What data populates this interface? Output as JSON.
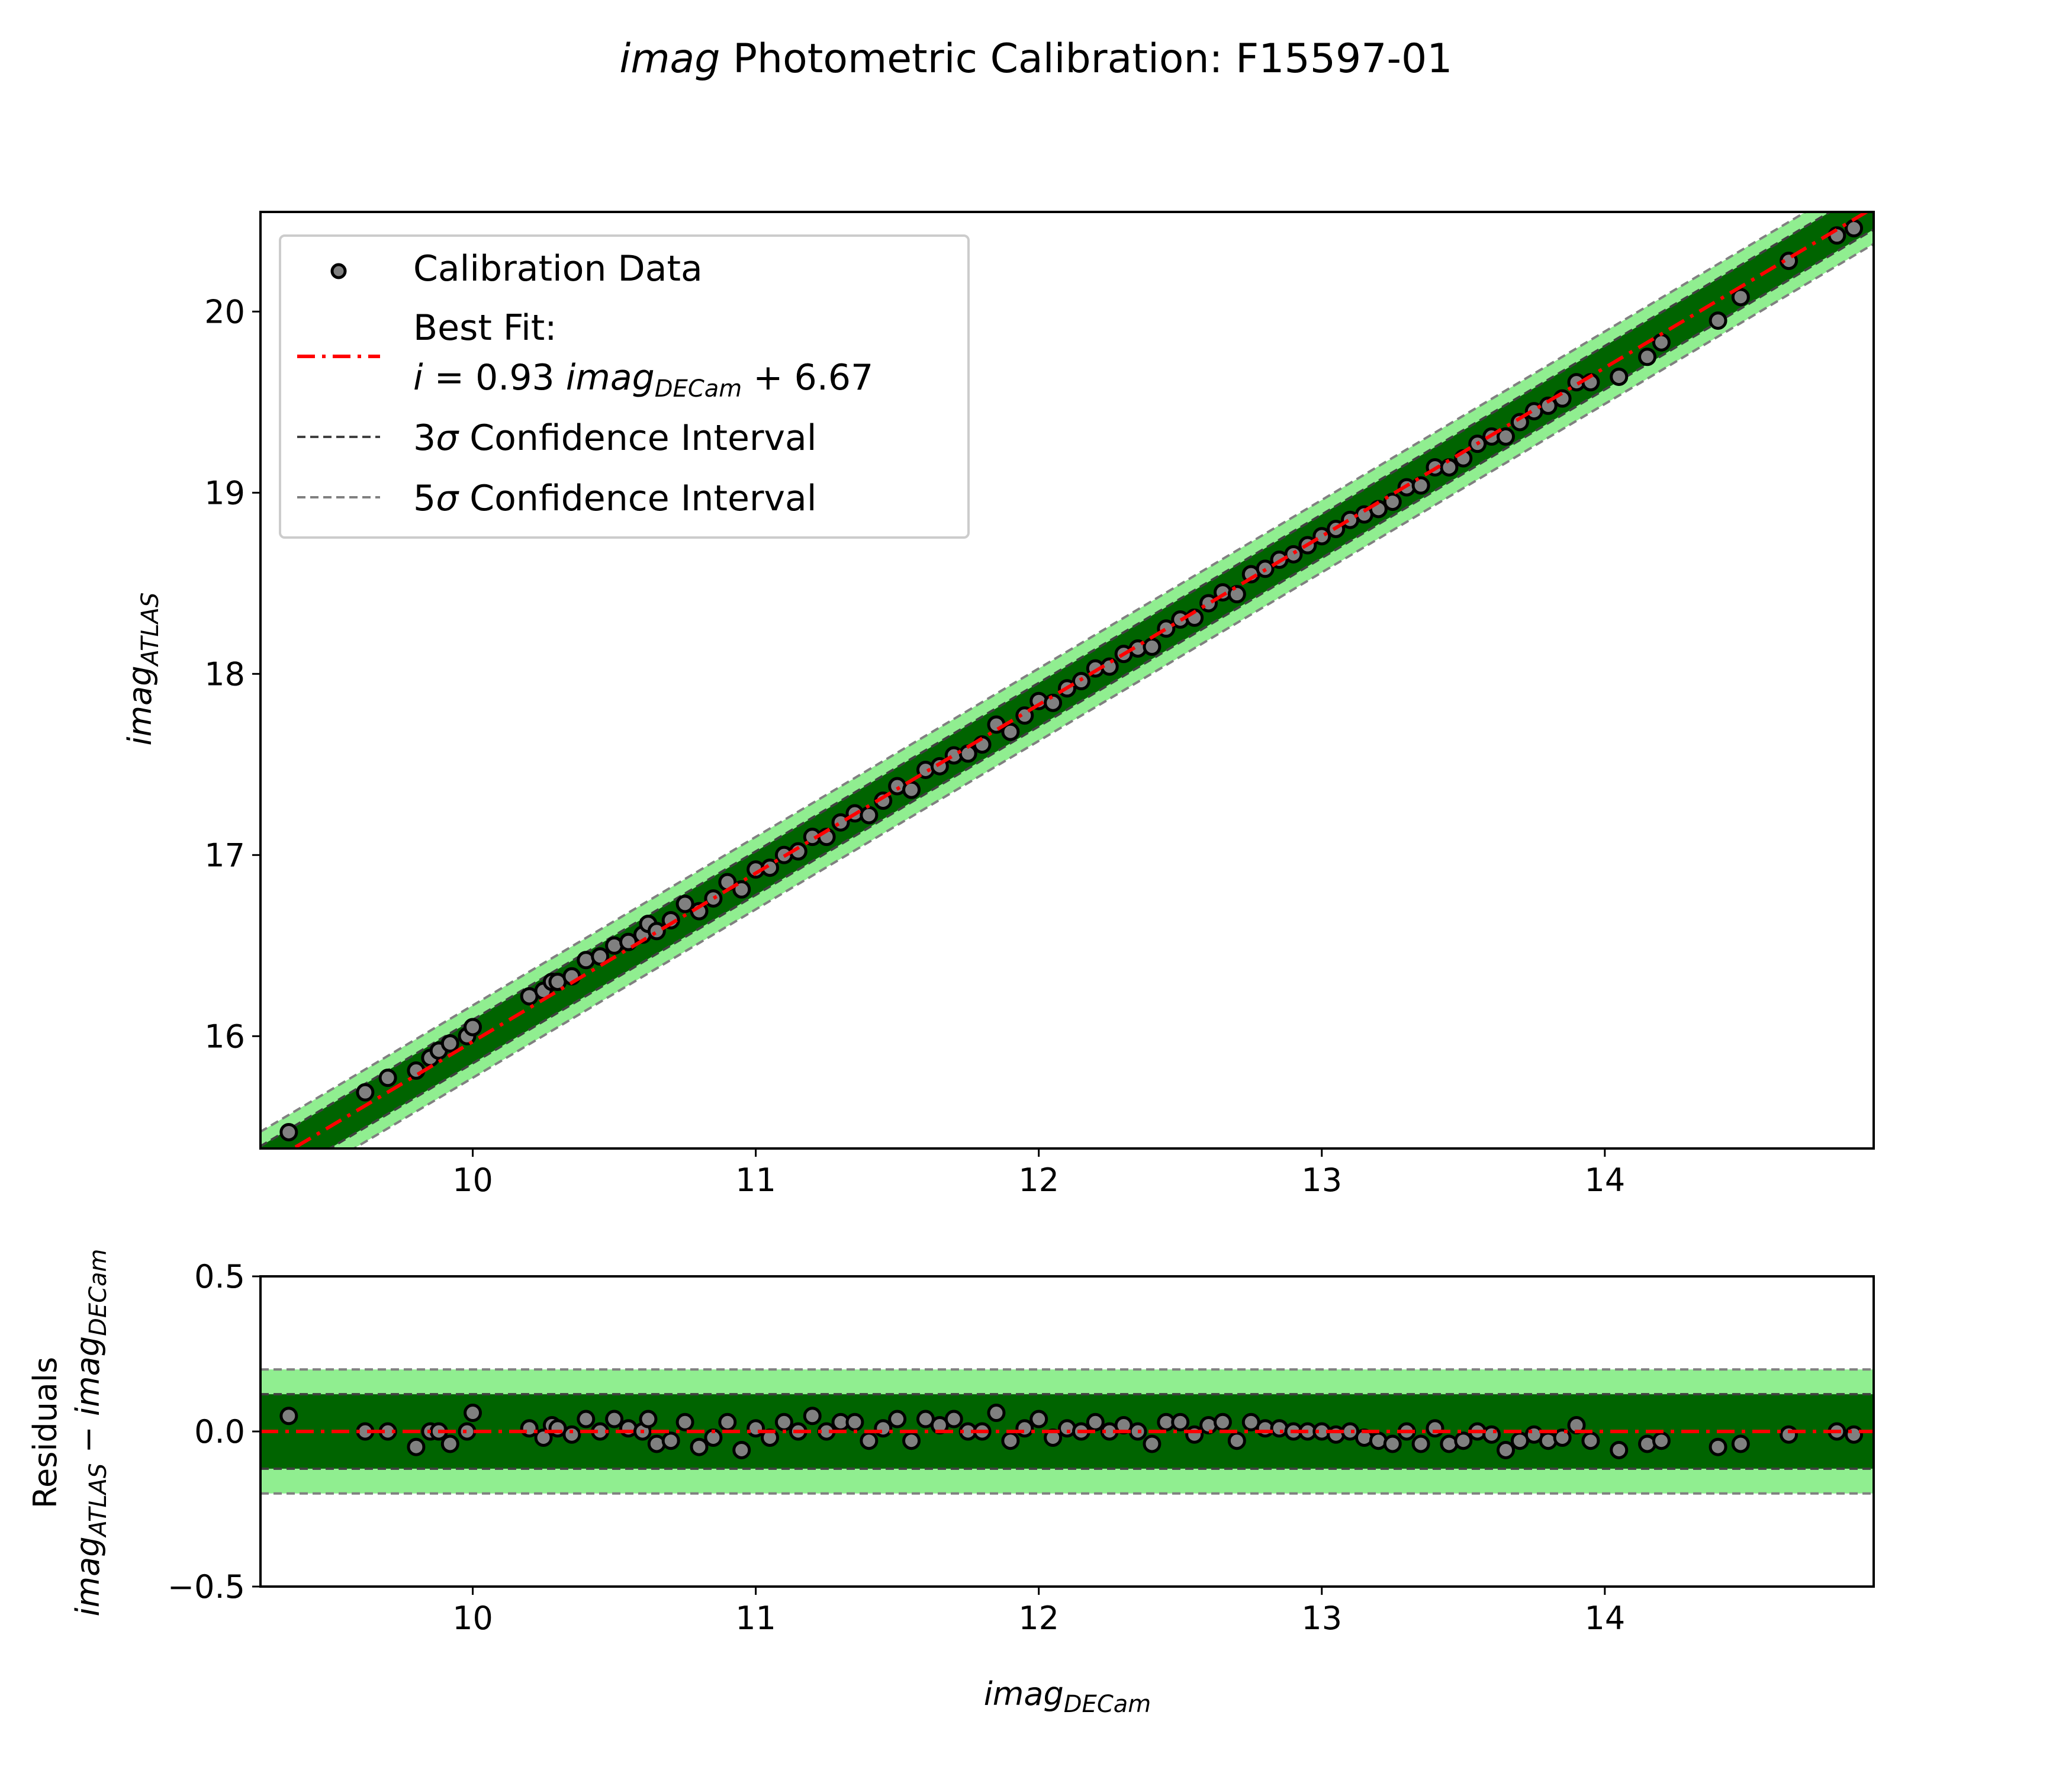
{
  "figure": {
    "title_italic": "imag",
    "title_rest": " Photometric Calibration: F15597-01"
  },
  "legend": {
    "calibration_data": "Calibration Data",
    "best_fit_line1": "Best Fit:",
    "best_fit_i": "i",
    "best_fit_eq_mid": " = 0.93 ",
    "best_fit_imag": "imag",
    "best_fit_sub": "DECam",
    "best_fit_eq_end": " + 6.67",
    "sigma3_prefix": "3",
    "sigma5_prefix": "5",
    "sigma_symbol": "σ",
    "interval_label": " Confidence Interval"
  },
  "axes_labels": {
    "top_ylabel_main": "imag",
    "top_ylabel_sub": "ATLAS",
    "bottom_ylabel_line1": "Residuals",
    "bottom_ylabel_main1": "imag",
    "bottom_ylabel_sub1": "ATLAS",
    "bottom_ylabel_minus": " − ",
    "bottom_ylabel_main2": "imag",
    "bottom_ylabel_sub2": "DECam",
    "xlabel_main": "imag",
    "xlabel_sub": "DECam"
  },
  "colors": {
    "sigma3_band": "#006400",
    "sigma5_band": "#90ee90",
    "best_fit_line": "#ff0000",
    "marker_fill": "#808080",
    "marker_edge": "#000000",
    "interval3_line": "#404040",
    "interval5_line": "#808080"
  },
  "chart_data": [
    {
      "type": "scatter",
      "panel": "calibration",
      "xlim": [
        9.25,
        14.95
      ],
      "ylim": [
        15.38,
        20.55
      ],
      "xticks": [
        10,
        11,
        12,
        13,
        14
      ],
      "yticks": [
        16,
        17,
        18,
        19,
        20
      ],
      "xtick_labels": [
        "10",
        "11",
        "12",
        "13",
        "14"
      ],
      "ytick_labels": [
        "16",
        "17",
        "18",
        "19",
        "20"
      ],
      "legend_position": "upper-left",
      "grid": false,
      "fit": {
        "slope": 0.93,
        "intercept": 6.67,
        "sigma3_halfwidth": 0.12,
        "sigma5_halfwidth": 0.2
      },
      "points_x": [
        9.35,
        9.62,
        9.7,
        9.8,
        9.85,
        9.88,
        9.92,
        9.98,
        10.0,
        10.2,
        10.25,
        10.28,
        10.3,
        10.35,
        10.4,
        10.45,
        10.5,
        10.55,
        10.6,
        10.62,
        10.65,
        10.7,
        10.75,
        10.8,
        10.85,
        10.9,
        10.95,
        11.0,
        11.05,
        11.1,
        11.15,
        11.2,
        11.25,
        11.3,
        11.35,
        11.4,
        11.45,
        11.5,
        11.55,
        11.6,
        11.65,
        11.7,
        11.75,
        11.8,
        11.85,
        11.9,
        11.95,
        12.0,
        12.05,
        12.1,
        12.15,
        12.2,
        12.25,
        12.3,
        12.35,
        12.4,
        12.45,
        12.5,
        12.55,
        12.6,
        12.65,
        12.7,
        12.75,
        12.8,
        12.85,
        12.9,
        12.95,
        13.0,
        13.05,
        13.1,
        13.15,
        13.2,
        13.25,
        13.3,
        13.35,
        13.4,
        13.45,
        13.5,
        13.55,
        13.6,
        13.65,
        13.7,
        13.75,
        13.8,
        13.85,
        13.9,
        13.95,
        14.05,
        14.15,
        14.2,
        14.4,
        14.48,
        14.65,
        14.82,
        14.88
      ],
      "points_y": [
        15.47,
        15.69,
        15.77,
        15.81,
        15.88,
        15.92,
        15.96,
        16.0,
        16.05,
        16.22,
        16.25,
        16.3,
        16.3,
        16.33,
        16.42,
        16.44,
        16.5,
        16.52,
        16.56,
        16.62,
        16.58,
        16.64,
        16.73,
        16.69,
        16.76,
        16.85,
        16.81,
        16.92,
        16.93,
        17.0,
        17.02,
        17.1,
        17.1,
        17.18,
        17.23,
        17.22,
        17.3,
        17.38,
        17.36,
        17.47,
        17.49,
        17.55,
        17.56,
        17.61,
        17.72,
        17.68,
        17.77,
        17.85,
        17.84,
        17.92,
        17.96,
        18.03,
        18.04,
        18.11,
        18.14,
        18.15,
        18.25,
        18.3,
        18.31,
        18.39,
        18.45,
        18.44,
        18.55,
        18.58,
        18.63,
        18.66,
        18.71,
        18.76,
        18.8,
        18.85,
        18.88,
        18.91,
        18.95,
        19.03,
        19.04,
        19.14,
        19.14,
        19.19,
        19.27,
        19.31,
        19.31,
        19.39,
        19.45,
        19.48,
        19.52,
        19.61,
        19.61,
        19.64,
        19.75,
        19.83,
        19.95,
        20.08,
        20.28,
        20.42,
        20.46
      ]
    },
    {
      "type": "scatter",
      "panel": "residuals",
      "xlim": [
        9.25,
        14.95
      ],
      "ylim": [
        -0.5,
        0.5
      ],
      "xticks": [
        10,
        11,
        12,
        13,
        14
      ],
      "yticks": [
        -0.5,
        0.0,
        0.5
      ],
      "xtick_labels": [
        "10",
        "11",
        "12",
        "13",
        "14"
      ],
      "ytick_labels": [
        "−0.5",
        "0.0",
        "0.5"
      ],
      "grid": false,
      "points_x": [
        9.35,
        9.62,
        9.7,
        9.8,
        9.85,
        9.88,
        9.92,
        9.98,
        10.0,
        10.2,
        10.25,
        10.28,
        10.3,
        10.35,
        10.4,
        10.45,
        10.5,
        10.55,
        10.6,
        10.62,
        10.65,
        10.7,
        10.75,
        10.8,
        10.85,
        10.9,
        10.95,
        11.0,
        11.05,
        11.1,
        11.15,
        11.2,
        11.25,
        11.3,
        11.35,
        11.4,
        11.45,
        11.5,
        11.55,
        11.6,
        11.65,
        11.7,
        11.75,
        11.8,
        11.85,
        11.9,
        11.95,
        12.0,
        12.05,
        12.1,
        12.15,
        12.2,
        12.25,
        12.3,
        12.35,
        12.4,
        12.45,
        12.5,
        12.55,
        12.6,
        12.65,
        12.7,
        12.75,
        12.8,
        12.85,
        12.9,
        12.95,
        13.0,
        13.05,
        13.1,
        13.15,
        13.2,
        13.25,
        13.3,
        13.35,
        13.4,
        13.45,
        13.5,
        13.55,
        13.6,
        13.65,
        13.7,
        13.75,
        13.8,
        13.85,
        13.9,
        13.95,
        14.05,
        14.15,
        14.2,
        14.4,
        14.48,
        14.65,
        14.82,
        14.88
      ],
      "points_y": [
        0.05,
        0.0,
        0.0,
        -0.05,
        0.0,
        0.0,
        -0.04,
        0.0,
        0.06,
        0.01,
        -0.02,
        0.02,
        0.01,
        -0.01,
        0.04,
        0.0,
        0.04,
        0.01,
        0.0,
        0.04,
        -0.04,
        -0.03,
        0.03,
        -0.05,
        -0.02,
        0.03,
        -0.06,
        0.01,
        -0.02,
        0.03,
        0.0,
        0.05,
        0.0,
        0.03,
        0.03,
        -0.03,
        0.01,
        0.04,
        -0.03,
        0.04,
        0.02,
        0.04,
        0.0,
        0.0,
        0.06,
        -0.03,
        0.01,
        0.04,
        -0.02,
        0.01,
        0.0,
        0.03,
        0.0,
        0.02,
        0.0,
        -0.04,
        0.03,
        0.03,
        -0.01,
        0.02,
        0.03,
        -0.03,
        0.03,
        0.01,
        0.01,
        0.0,
        0.0,
        0.0,
        -0.01,
        0.0,
        -0.02,
        -0.03,
        -0.04,
        0.0,
        -0.04,
        0.01,
        -0.04,
        -0.03,
        0.0,
        -0.01,
        -0.06,
        -0.03,
        -0.01,
        -0.03,
        -0.02,
        0.02,
        -0.03,
        -0.06,
        -0.04,
        -0.03,
        -0.05,
        -0.04,
        -0.01,
        0.0,
        -0.01
      ]
    }
  ]
}
